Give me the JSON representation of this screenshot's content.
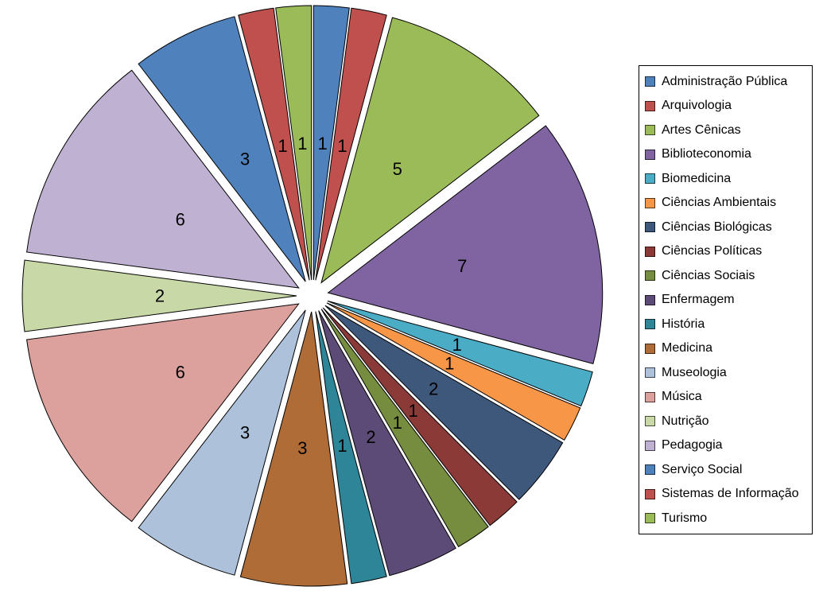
{
  "chart_data": {
    "type": "pie",
    "title": "",
    "exploded": true,
    "legend_position": "right",
    "data_labels": "value",
    "total": 48,
    "background_color": "#FFFFFF",
    "slice_border_color": "#000000",
    "label_color": "#000000",
    "legend_border_color": "#000000",
    "categories": [
      "Administração Pública",
      "Arquivologia",
      "Artes Cênicas",
      "Biblioteconomia",
      "Biomedicina",
      "Ciências Ambientais",
      "Ciências Biológicas",
      "Ciências Políticas",
      "Ciências Sociais",
      "Enfermagem",
      "História",
      "Medicina",
      "Museologia",
      "Música",
      "Nutrição",
      "Pedagogia",
      "Serviço Social",
      "Sistemas de Informação",
      "Turismo"
    ],
    "values": [
      1,
      1,
      5,
      7,
      1,
      1,
      2,
      1,
      1,
      2,
      1,
      3,
      3,
      6,
      2,
      6,
      3,
      1,
      1
    ],
    "colors": [
      "#4F81BD",
      "#C0504D",
      "#9BBB59",
      "#8064A2",
      "#4BACC6",
      "#F79646",
      "#3E587C",
      "#8B3A37",
      "#768C3E",
      "#5D4B77",
      "#2F8598",
      "#AF6C37",
      "#ADC1DB",
      "#DCA09D",
      "#C9D8A7",
      "#BFB1D2",
      "#4F81BD",
      "#C0504D",
      "#9BBB59"
    ]
  }
}
